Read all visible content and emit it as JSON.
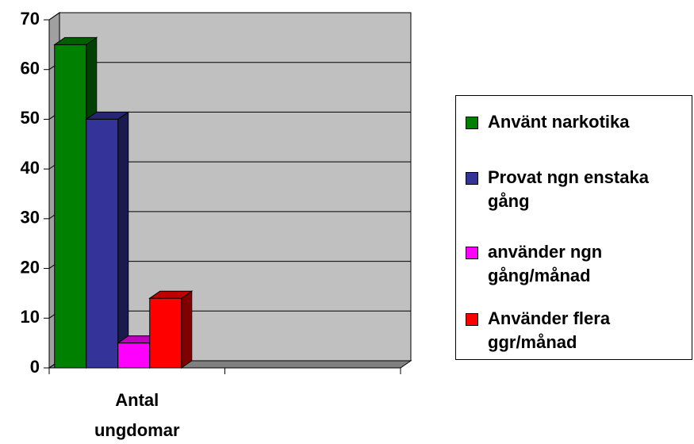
{
  "chart_data": {
    "type": "bar3d",
    "categories": [
      "Antal ungdomar",
      null
    ],
    "series": [
      {
        "name": "Använt narkotika",
        "color": "#008000",
        "values": [
          65,
          null
        ]
      },
      {
        "name": "Provat ngn enstaka  gång",
        "color": "#333399",
        "values": [
          50,
          null
        ]
      },
      {
        "name": "använder ngn gång/månad",
        "color": "#ff00ff",
        "values": [
          5,
          null
        ]
      },
      {
        "name": "Använder flera ggr/månad",
        "color": "#ff0000",
        "values": [
          14,
          null
        ]
      }
    ],
    "ylim": [
      0,
      70
    ],
    "yticks": [
      0,
      10,
      20,
      30,
      40,
      50,
      60,
      70
    ],
    "grid": true,
    "legend": "right"
  }
}
